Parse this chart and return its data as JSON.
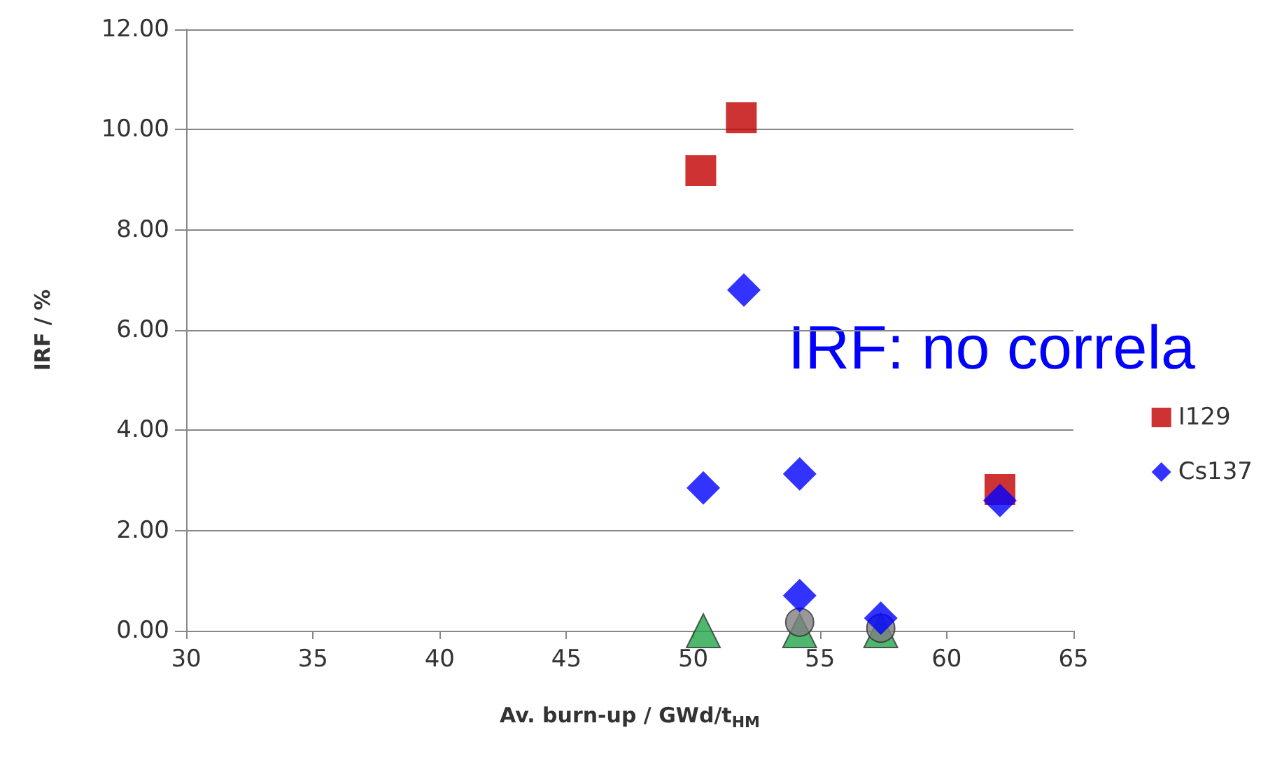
{
  "chart_data": {
    "type": "scatter",
    "xlabel": "Av. burn-up / GWd/t$_{HM}$",
    "ylabel": "IRF / %",
    "xlim": [
      30,
      65
    ],
    "xticks": [
      30,
      35,
      40,
      45,
      50,
      55,
      60,
      65
    ],
    "ylim": [
      0,
      12
    ],
    "yticks": [
      {
        "value": 0,
        "label": "0.00"
      },
      {
        "value": 2,
        "label": "2.00"
      },
      {
        "value": 4,
        "label": "4.00"
      },
      {
        "value": 6,
        "label": "6.00"
      },
      {
        "value": 8,
        "label": "8.00"
      },
      {
        "value": 10,
        "label": "10.00"
      },
      {
        "value": 12,
        "label": "12.00"
      }
    ],
    "grid": "y",
    "legend": "right",
    "annotations": [
      "IRF: no correla"
    ],
    "series": [
      {
        "name": "I129",
        "color": "#c00000",
        "marker": "square",
        "x": [
          50.3,
          51.9,
          62.1
        ],
        "values": [
          9.18,
          10.24,
          2.82
        ]
      },
      {
        "color": "#22a84a",
        "marker": "triangle",
        "x": [
          50.4,
          54.2,
          57.4
        ],
        "values": [
          0.0,
          0.0,
          0.0
        ]
      },
      {
        "color": "#808080",
        "marker": "circle",
        "x": [
          54.2,
          57.4
        ],
        "values": [
          0.17,
          0.05
        ]
      },
      {
        "name": "Cs137",
        "color": "#0000ff",
        "marker": "diamond",
        "x": [
          50.4,
          52.0,
          54.2,
          54.2,
          57.4,
          62.1
        ],
        "values": [
          2.85,
          6.8,
          3.13,
          0.7,
          0.25,
          2.6
        ]
      }
    ]
  }
}
